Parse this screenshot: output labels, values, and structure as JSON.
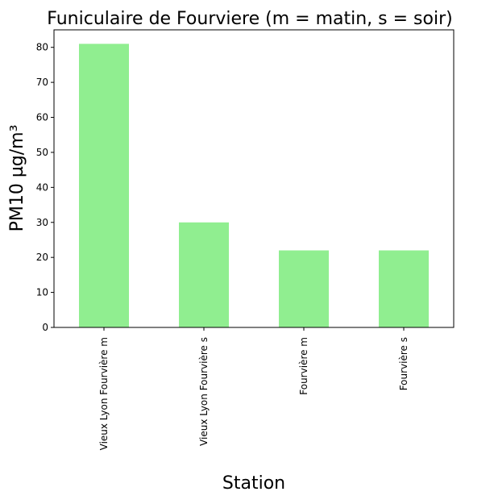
{
  "chart_data": {
    "type": "bar",
    "title": "Funiculaire de Fourviere (m = matin, s = soir)",
    "xlabel": "Station",
    "ylabel": "PM10 µg/m³",
    "categories": [
      "Vieux Lyon Fourvière m",
      "Vieux Lyon Fourvière s",
      "Fourvière m",
      "Fourvière s"
    ],
    "values": [
      81,
      30,
      22,
      22
    ],
    "ylim": [
      0,
      85
    ],
    "yticks": [
      0,
      10,
      20,
      30,
      40,
      50,
      60,
      70,
      80
    ],
    "bar_color": "#90ee90",
    "grid": false,
    "legend": "none"
  }
}
